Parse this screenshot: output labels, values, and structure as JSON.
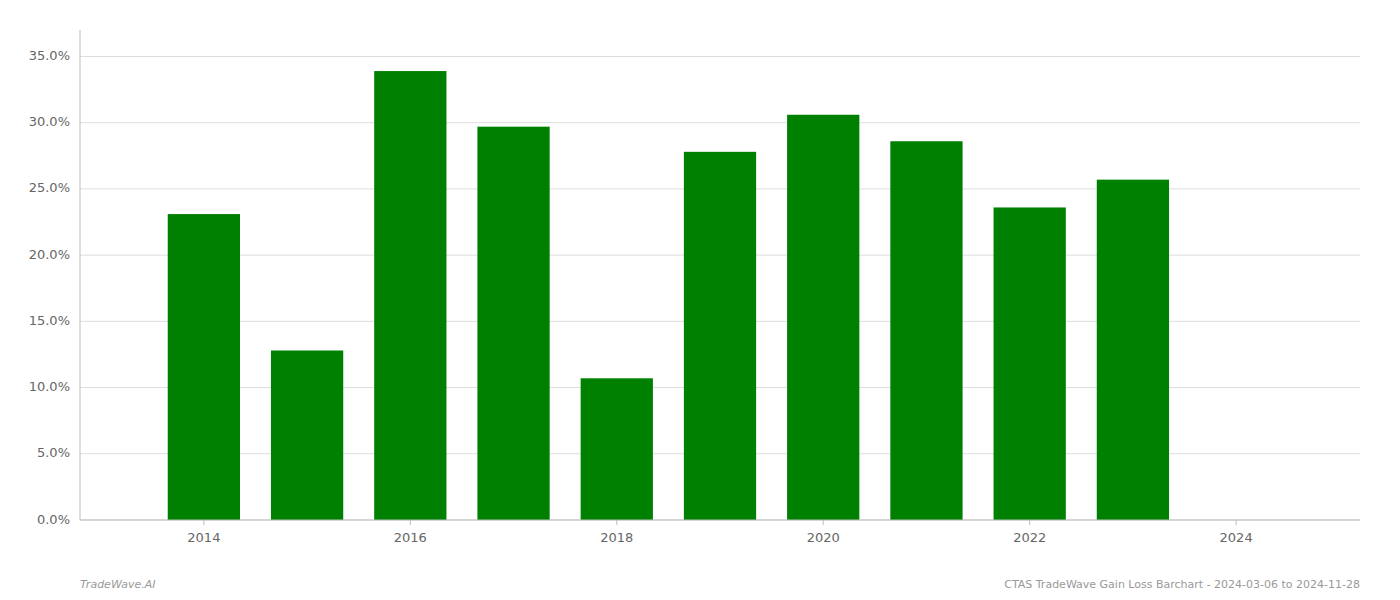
{
  "chart_data": {
    "type": "bar",
    "x": [
      2014,
      2015,
      2016,
      2017,
      2018,
      2019,
      2020,
      2021,
      2022,
      2023
    ],
    "values": [
      0.231,
      0.128,
      0.339,
      0.297,
      0.107,
      0.278,
      0.306,
      0.286,
      0.236,
      0.257
    ],
    "color": "#008000",
    "xlim": [
      2012.8,
      2025.2
    ],
    "xticks": [
      2014,
      2016,
      2018,
      2020,
      2022,
      2024
    ],
    "ylim": [
      0,
      0.37
    ],
    "yticks": [
      {
        "value": 0.0,
        "label": "0.0%"
      },
      {
        "value": 0.05,
        "label": "5.0%"
      },
      {
        "value": 0.1,
        "label": "10.0%"
      },
      {
        "value": 0.15,
        "label": "15.0%"
      },
      {
        "value": 0.2,
        "label": "20.0%"
      },
      {
        "value": 0.25,
        "label": "25.0%"
      },
      {
        "value": 0.3,
        "label": "30.0%"
      },
      {
        "value": 0.35,
        "label": "35.0%"
      }
    ],
    "grid": true,
    "annotations": [
      "TradeWave.AI",
      "CTAS TradeWave Gain Loss Barchart - 2024-03-06 to 2024-11-28"
    ]
  }
}
